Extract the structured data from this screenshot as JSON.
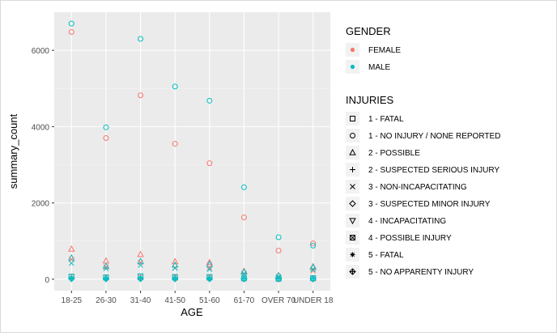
{
  "chart_data": {
    "type": "scatter",
    "title": "",
    "xlabel": "AGE",
    "ylabel": "summary_count",
    "categories": [
      "18-25",
      "26-30",
      "31-40",
      "41-50",
      "51-60",
      "61-70",
      "OVER 70",
      "UNDER 18"
    ],
    "y_ticks": [
      "0",
      "2000",
      "4000",
      "6000"
    ],
    "ylim": [
      -300,
      7000
    ],
    "grid": true,
    "legend_position": "right",
    "legends": [
      {
        "title": "GENDER",
        "entries": [
          {
            "label": "FEMALE",
            "color": "#F8766D",
            "shape": "dot"
          },
          {
            "label": "MALE",
            "color": "#00BFC4",
            "shape": "dot"
          }
        ]
      },
      {
        "title": "INJURIES",
        "entries": [
          {
            "label": "1 - FATAL",
            "shape": "square"
          },
          {
            "label": "1 - NO INJURY / NONE REPORTED",
            "shape": "circle"
          },
          {
            "label": "2 - POSSIBLE",
            "shape": "triangle"
          },
          {
            "label": "2 - SUSPECTED SERIOUS INJURY",
            "shape": "plus"
          },
          {
            "label": "3 - NON-INCAPACITATING",
            "shape": "cross"
          },
          {
            "label": "3 - SUSPECTED MINOR INJURY",
            "shape": "diamond"
          },
          {
            "label": "4 - INCAPACITATING",
            "shape": "triangle-down"
          },
          {
            "label": "4 - POSSIBLE INJURY",
            "shape": "square-cross"
          },
          {
            "label": "5 - FATAL",
            "shape": "star"
          },
          {
            "label": "5 - NO APPARENTY INJURY",
            "shape": "diamond-plus"
          }
        ]
      }
    ],
    "series": [
      {
        "gender": "FEMALE",
        "injury": "1 - NO INJURY / NONE REPORTED",
        "values": [
          6480,
          3700,
          4820,
          3550,
          3040,
          1620,
          750,
          940
        ]
      },
      {
        "gender": "MALE",
        "injury": "1 - NO INJURY / NONE REPORTED",
        "values": [
          6700,
          3980,
          6300,
          5050,
          4680,
          2410,
          1100,
          880
        ]
      },
      {
        "gender": "FEMALE",
        "injury": "2 - POSSIBLE",
        "values": [
          790,
          480,
          650,
          460,
          440,
          210,
          100,
          330
        ]
      },
      {
        "gender": "MALE",
        "injury": "2 - POSSIBLE",
        "values": [
          560,
          340,
          470,
          370,
          390,
          190,
          90,
          310
        ]
      },
      {
        "gender": "FEMALE",
        "injury": "3 - NON-INCAPACITATING",
        "values": [
          520,
          320,
          440,
          300,
          300,
          150,
          70,
          220
        ]
      },
      {
        "gender": "MALE",
        "injury": "3 - NON-INCAPACITATING",
        "values": [
          420,
          280,
          370,
          290,
          260,
          140,
          60,
          260
        ]
      },
      {
        "gender": "FEMALE",
        "injury": "1 - FATAL",
        "values": [
          60,
          40,
          50,
          40,
          40,
          20,
          10,
          20
        ]
      },
      {
        "gender": "MALE",
        "injury": "1 - FATAL",
        "values": [
          70,
          50,
          80,
          60,
          60,
          30,
          20,
          30
        ]
      },
      {
        "gender": "FEMALE",
        "injury": "2 - SUSPECTED SERIOUS INJURY",
        "values": [
          30,
          20,
          30,
          20,
          20,
          10,
          5,
          10
        ]
      },
      {
        "gender": "MALE",
        "injury": "2 - SUSPECTED SERIOUS INJURY",
        "values": [
          40,
          30,
          40,
          30,
          30,
          20,
          10,
          15
        ]
      },
      {
        "gender": "MALE",
        "injury": "3 - SUSPECTED MINOR INJURY",
        "values": [
          20,
          15,
          20,
          15,
          15,
          10,
          5,
          10
        ]
      },
      {
        "gender": "MALE",
        "injury": "5 - NO APPARENTY INJURY",
        "values": [
          10,
          8,
          10,
          8,
          8,
          5,
          3,
          5
        ]
      }
    ]
  }
}
